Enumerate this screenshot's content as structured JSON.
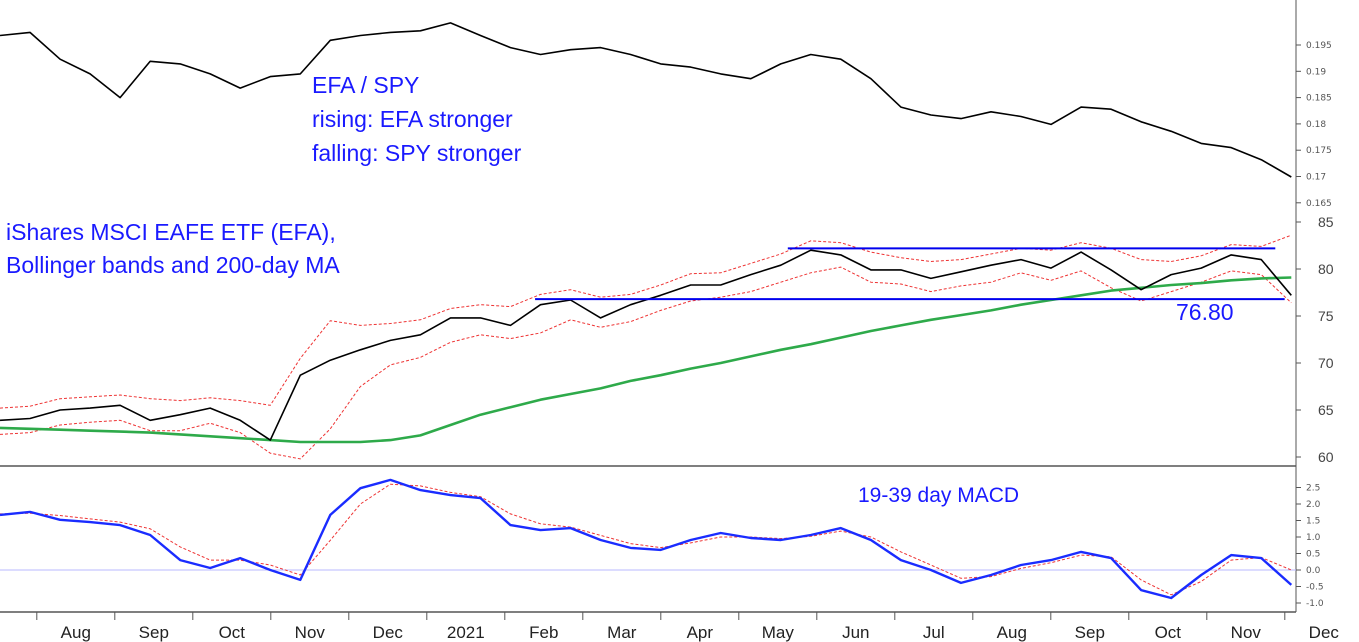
{
  "chart_data": [
    {
      "type": "line",
      "title": "EFA / SPY",
      "annotations": [
        "EFA / SPY",
        "rising: EFA stronger",
        "falling: SPY stronger"
      ],
      "x_unit": "months since 2020-07-01",
      "x_start": 0.7,
      "x_step": 0.385,
      "ylim": [
        0.162,
        0.2
      ],
      "yticks": [
        "0.195",
        "0.19",
        "0.185",
        "0.18",
        "0.175",
        "0.17",
        "0.165"
      ],
      "ytick_values": [
        0.195,
        0.19,
        0.185,
        0.18,
        0.175,
        0.17,
        0.165
      ],
      "series": [
        {
          "name": "EFA/SPY ratio",
          "color": "#000000",
          "values": [
            0.1968,
            0.1974,
            0.1923,
            0.1895,
            0.185,
            0.1919,
            0.1914,
            0.1895,
            0.1868,
            0.189,
            0.1895,
            0.1959,
            0.1968,
            0.1974,
            0.1977,
            0.1992,
            0.1968,
            0.1945,
            0.1932,
            0.1941,
            0.1945,
            0.1932,
            0.1914,
            0.1908,
            0.1895,
            0.1886,
            0.1914,
            0.1932,
            0.1923,
            0.1886,
            0.1832,
            0.1817,
            0.181,
            0.1823,
            0.1814,
            0.1799,
            0.1832,
            0.1828,
            0.1804,
            0.1786,
            0.1763,
            0.1755,
            0.1732,
            0.1699
          ]
        }
      ]
    },
    {
      "type": "line",
      "title": "iShares MSCI EAFE ETF (EFA),",
      "subtitle": "Bollinger bands and 200-day MA",
      "x_unit": "months since 2020-07-01",
      "x_start": 0.7,
      "x_step": 0.385,
      "ylim": [
        58.5,
        87.4
      ],
      "yticks": [
        "85",
        "80",
        "75",
        "70",
        "65",
        "60"
      ],
      "ytick_values": [
        85,
        80,
        75,
        70,
        65,
        60
      ],
      "series": [
        {
          "name": "EFA",
          "color": "#000000",
          "values": [
            63.9,
            64.1,
            65.0,
            65.2,
            65.5,
            63.9,
            64.5,
            65.2,
            63.9,
            61.8,
            68.7,
            70.3,
            71.4,
            72.4,
            73.0,
            74.8,
            74.8,
            74.0,
            76.2,
            76.7,
            74.8,
            76.2,
            77.2,
            78.3,
            78.3,
            79.4,
            80.4,
            82.0,
            81.5,
            79.9,
            79.9,
            79.0,
            79.7,
            80.4,
            81.0,
            80.1,
            81.8,
            79.9,
            77.8,
            79.4,
            80.1,
            81.5,
            81.0,
            77.2
          ]
        },
        {
          "name": "200-day MA",
          "color": "#2eaa4a",
          "values": [
            63.1,
            63.0,
            62.9,
            62.8,
            62.7,
            62.6,
            62.4,
            62.2,
            62.0,
            61.8,
            61.6,
            61.6,
            61.6,
            61.8,
            62.3,
            63.4,
            64.5,
            65.3,
            66.1,
            66.7,
            67.3,
            68.1,
            68.7,
            69.4,
            70.0,
            70.7,
            71.4,
            72.0,
            72.7,
            73.4,
            74.0,
            74.6,
            75.1,
            75.6,
            76.2,
            76.7,
            77.2,
            77.7,
            78.0,
            78.3,
            78.5,
            78.8,
            79.0,
            79.1
          ]
        },
        {
          "name": "Bollinger upper",
          "color": "#ee3333",
          "values": [
            65.2,
            65.4,
            66.2,
            66.4,
            66.6,
            66.2,
            66.0,
            66.3,
            66.0,
            65.5,
            70.5,
            74.5,
            74.0,
            74.2,
            74.6,
            75.8,
            76.2,
            76.0,
            77.3,
            77.8,
            77.0,
            77.3,
            78.3,
            79.5,
            79.6,
            80.6,
            81.6,
            83.0,
            82.8,
            81.8,
            81.2,
            80.8,
            81.0,
            81.6,
            82.2,
            82.0,
            82.8,
            82.2,
            81.0,
            80.8,
            81.4,
            82.6,
            82.4,
            83.6
          ]
        },
        {
          "name": "Bollinger lower",
          "color": "#ee3333",
          "values": [
            62.4,
            62.6,
            63.4,
            63.7,
            63.9,
            62.8,
            62.8,
            63.6,
            62.6,
            60.4,
            59.8,
            63.0,
            67.5,
            69.8,
            70.6,
            72.2,
            73.0,
            72.6,
            73.2,
            74.6,
            73.8,
            74.4,
            75.6,
            76.6,
            77.0,
            77.6,
            78.6,
            79.6,
            80.2,
            78.6,
            78.4,
            77.6,
            78.2,
            78.6,
            79.6,
            78.8,
            79.8,
            78.0,
            76.6,
            77.6,
            78.6,
            79.8,
            79.4,
            76.4
          ]
        }
      ],
      "levels": [
        {
          "value": 82.2,
          "x_from": 10.8,
          "x_to": 17.05,
          "color": "#0000ee"
        },
        {
          "value": 76.8,
          "x_from": 7.56,
          "x_to": 17.17,
          "color": "#0000ee",
          "label": "76.80"
        }
      ]
    },
    {
      "type": "line",
      "title": "19-39 day MACD",
      "x_unit": "months since 2020-07-01",
      "x_start": 0.7,
      "x_step": 0.385,
      "ylim": [
        -1.25,
        2.9
      ],
      "yticks": [
        "2.5",
        "2.0",
        "1.5",
        "1.0",
        "0.5",
        "0.0",
        "-0.5",
        "-1.0"
      ],
      "ytick_values": [
        2.5,
        2.0,
        1.5,
        1.0,
        0.5,
        0.0,
        -0.5,
        -1.0
      ],
      "zero_line_color": "#b8b8ff",
      "series": [
        {
          "name": "MACD",
          "color": "#1a2cff",
          "values": [
            1.67,
            1.76,
            1.52,
            1.45,
            1.36,
            1.06,
            0.3,
            0.06,
            0.36,
            0.0,
            -0.3,
            1.67,
            2.48,
            2.73,
            2.42,
            2.27,
            2.18,
            1.36,
            1.21,
            1.27,
            0.91,
            0.67,
            0.61,
            0.91,
            1.12,
            0.97,
            0.91,
            1.06,
            1.27,
            0.91,
            0.3,
            0.0,
            -0.39,
            -0.15,
            0.15,
            0.3,
            0.55,
            0.36,
            -0.61,
            -0.85,
            -0.15,
            0.45,
            0.36,
            -0.45
          ]
        },
        {
          "name": "Signal",
          "color": "#ee3333",
          "values": [
            1.7,
            1.72,
            1.65,
            1.55,
            1.45,
            1.25,
            0.7,
            0.3,
            0.3,
            0.15,
            -0.15,
            0.9,
            2.0,
            2.6,
            2.55,
            2.35,
            2.22,
            1.7,
            1.4,
            1.3,
            1.05,
            0.8,
            0.68,
            0.82,
            1.0,
            1.0,
            0.95,
            1.02,
            1.18,
            1.0,
            0.55,
            0.15,
            -0.25,
            -0.2,
            0.05,
            0.22,
            0.45,
            0.4,
            -0.3,
            -0.75,
            -0.35,
            0.3,
            0.38,
            0.0
          ]
        }
      ]
    }
  ],
  "x_axis": {
    "labels": [
      "Aug",
      "Sep",
      "Oct",
      "Nov",
      "Dec",
      "2021",
      "Feb",
      "Mar",
      "Apr",
      "May",
      "Jun",
      "Jul",
      "Aug",
      "Sep",
      "Oct",
      "Nov",
      "Dec"
    ],
    "label_positions_months": [
      1,
      2,
      3,
      4,
      5,
      6,
      7,
      8,
      9,
      10,
      11,
      12,
      13,
      14,
      15,
      16,
      17
    ]
  }
}
